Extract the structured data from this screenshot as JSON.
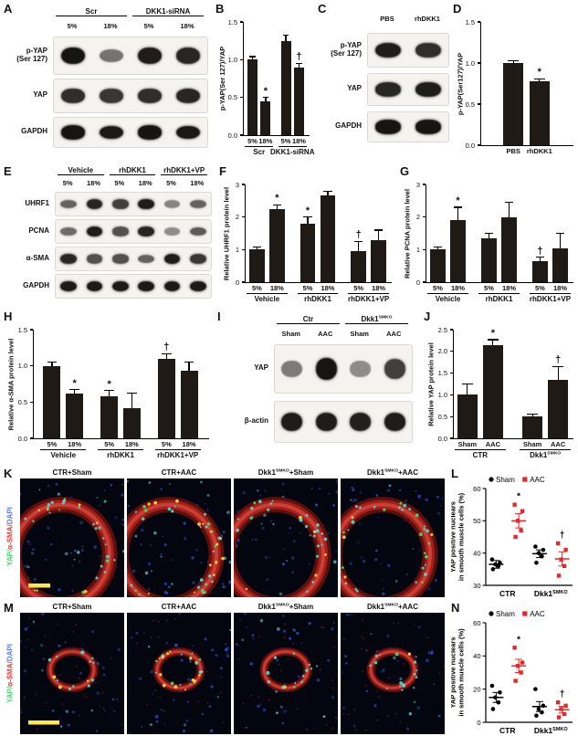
{
  "panel_labels": {
    "A": "A",
    "B": "B",
    "C": "C",
    "D": "D",
    "E": "E",
    "F": "F",
    "G": "G",
    "H": "H",
    "I": "I",
    "J": "J",
    "K": "K",
    "L": "L",
    "M": "M",
    "N": "N"
  },
  "blots": {
    "A": {
      "groups": [
        {
          "text": "Scr",
          "span": 2
        },
        {
          "text": "DKK1-siRNA",
          "span": 2
        }
      ],
      "lanes": [
        "5%",
        "18%",
        "5%",
        "18%"
      ],
      "rows": [
        {
          "label": "p-YAP\n(Ser 127)",
          "bands": [
            0.95,
            0.4,
            0.9,
            0.85
          ]
        },
        {
          "label": "YAP",
          "bands": [
            0.8,
            0.75,
            0.8,
            0.85
          ]
        },
        {
          "label": "GAPDH",
          "bands": [
            0.95,
            0.92,
            0.95,
            0.93
          ]
        }
      ]
    },
    "C": {
      "lanes": [
        "PBS",
        "rhDKK1"
      ],
      "rows": [
        {
          "label": "p-YAP\n(Ser 127)",
          "bands": [
            0.9,
            0.8
          ]
        },
        {
          "label": "YAP",
          "bands": [
            0.85,
            0.9
          ]
        },
        {
          "label": "GAPDH",
          "bands": [
            0.95,
            0.95
          ]
        }
      ]
    },
    "E": {
      "groups": [
        {
          "text": "Vehicle",
          "span": 2
        },
        {
          "text": "rhDKK1",
          "span": 2
        },
        {
          "text": "rhDKK1+VP",
          "span": 2
        }
      ],
      "lanes": [
        "5%",
        "18%",
        "5%",
        "18%",
        "5%",
        "18%"
      ],
      "rows": [
        {
          "label": "UHRF1",
          "bands": [
            0.5,
            0.85,
            0.7,
            0.9,
            0.3,
            0.5
          ]
        },
        {
          "label": "PCNA",
          "bands": [
            0.45,
            0.9,
            0.6,
            0.85,
            0.25,
            0.55
          ]
        },
        {
          "label": "α-SMA",
          "bands": [
            0.85,
            0.6,
            0.6,
            0.5,
            0.9,
            0.75
          ]
        },
        {
          "label": "GAPDH",
          "bands": [
            0.92,
            0.92,
            0.92,
            0.92,
            0.92,
            0.92
          ]
        }
      ]
    },
    "I": {
      "groups": [
        {
          "text": "Ctr",
          "span": 2
        },
        {
          "text": "Dkk1",
          "sup": "SMKO",
          "span": 2
        }
      ],
      "lanes": [
        "Sham",
        "AAC",
        "Sham",
        "AAC"
      ],
      "rows": [
        {
          "label": "YAP",
          "bands": [
            0.35,
            0.95,
            0.25,
            0.7
          ]
        },
        {
          "label": "β-actin",
          "bands": [
            0.9,
            0.9,
            0.88,
            0.9
          ]
        }
      ]
    }
  },
  "fluor": {
    "K": {
      "side_label": [
        {
          "t": "YAP/",
          "c": "#3ddc6f"
        },
        {
          "t": "α-SMA/",
          "c": "#e8403a"
        },
        {
          "t": "DAPI",
          "c": "#5f7cf0"
        }
      ],
      "titles": [
        [
          {
            "t": "CTR+Sham"
          }
        ],
        [
          {
            "t": "CTR+AAC"
          }
        ],
        [
          {
            "t": "Dkk1"
          },
          {
            "sup": "SMKO"
          },
          {
            "t": "+Sham"
          }
        ],
        [
          {
            "t": "Dkk1"
          },
          {
            "sup": "SMKO"
          },
          {
            "t": "+AAC"
          }
        ]
      ],
      "images": [
        {
          "type": "arc",
          "bg": 58,
          "ring": 48,
          "green": 0.28,
          "scalebar": true
        },
        {
          "type": "arc",
          "bg": 58,
          "ring": 54,
          "green": 0.5,
          "scalebar": false
        },
        {
          "type": "arc",
          "bg": 58,
          "ring": 48,
          "green": 0.28,
          "scalebar": false
        },
        {
          "type": "arc",
          "bg": 58,
          "ring": 52,
          "green": 0.45,
          "scalebar": false
        }
      ]
    },
    "M": {
      "side_label": [
        {
          "t": "YAP/",
          "c": "#3ddc6f"
        },
        {
          "t": "α-SMA/",
          "c": "#e8403a"
        },
        {
          "t": "DAPI",
          "c": "#5f7cf0"
        }
      ],
      "titles": [
        [
          {
            "t": "CTR+Sham"
          }
        ],
        [
          {
            "t": "CTR+AAC"
          }
        ],
        [
          {
            "t": "Dkk1"
          },
          {
            "sup": "SMKO"
          },
          {
            "t": "+Sham"
          }
        ],
        [
          {
            "t": "Dkk1"
          },
          {
            "sup": "SMKO"
          },
          {
            "t": "+AAC"
          }
        ]
      ],
      "images": [
        {
          "type": "ring",
          "bg": 46,
          "ring": 16,
          "green": 0.2,
          "scalebar": true
        },
        {
          "type": "ring",
          "bg": 46,
          "ring": 28,
          "green": 0.6,
          "scalebar": false
        },
        {
          "type": "ring",
          "bg": 46,
          "ring": 14,
          "green": 0.15,
          "scalebar": false
        },
        {
          "type": "ring",
          "bg": 46,
          "ring": 16,
          "green": 0.25,
          "scalebar": false
        }
      ]
    }
  },
  "chart_data": [
    {
      "id": "B",
      "type": "bar",
      "ylabel": "p-YAP(Ser 127)/YAP",
      "ymin": 0,
      "ymax": 1.5,
      "yticks": [
        0,
        0.5,
        1,
        1.5
      ],
      "ytick_labels": [
        "0.0",
        "0.5",
        "1.0",
        "1.5"
      ],
      "categories": [
        "5%",
        "18%",
        "5%",
        "18%"
      ],
      "groups": [
        {
          "text": "Scr",
          "span": 2
        },
        {
          "text": "DKK1-siRNA",
          "span": 2
        }
      ],
      "values": [
        1.0,
        0.45,
        1.25,
        0.9
      ],
      "errors": [
        0.04,
        0.05,
        0.07,
        0.05
      ],
      "sig": [
        "",
        "*",
        "",
        "†"
      ],
      "bar_color": "#1f1a15"
    },
    {
      "id": "D",
      "type": "bar",
      "ylabel": "p-YAP(Ser127)/YAP",
      "ymin": 0,
      "ymax": 1.5,
      "yticks": [
        0,
        0.5,
        1,
        1.5
      ],
      "ytick_labels": [
        "0.0",
        "0.5",
        "1.0",
        "1.5"
      ],
      "categories": [
        "PBS",
        "rhDKK1"
      ],
      "values": [
        1.0,
        0.78
      ],
      "errors": [
        0.03,
        0.03
      ],
      "sig": [
        "",
        "*"
      ],
      "bar_color": "#1f1a15"
    },
    {
      "id": "F",
      "type": "bar",
      "ylabel": "Relative UHRF1 protein level",
      "ymin": 0,
      "ymax": 3,
      "yticks": [
        0,
        1,
        2,
        3
      ],
      "ytick_labels": [
        "0",
        "1",
        "2",
        "3"
      ],
      "categories": [
        "5%",
        "18%",
        "5%",
        "18%",
        "5%",
        "18%"
      ],
      "groups": [
        {
          "text": "Vehicle",
          "span": 2
        },
        {
          "text": "rhDKK1",
          "span": 2
        },
        {
          "text": "rhDKK1+VP",
          "span": 2
        }
      ],
      "values": [
        1.0,
        2.25,
        1.8,
        2.65,
        0.95,
        1.3
      ],
      "errors": [
        0.08,
        0.12,
        0.2,
        0.15,
        0.3,
        0.3
      ],
      "sig": [
        "",
        "*",
        "*",
        "",
        "†",
        ""
      ],
      "bar_color": "#1f1a15"
    },
    {
      "id": "G",
      "type": "bar",
      "ylabel": "Relative PCNA protein level",
      "ymin": 0,
      "ymax": 3,
      "yticks": [
        0,
        1,
        2,
        3
      ],
      "ytick_labels": [
        "0",
        "1",
        "2",
        "3"
      ],
      "categories": [
        "5%",
        "18%",
        "5%",
        "18%",
        "5%",
        "18%"
      ],
      "groups": [
        {
          "text": "Vehicle",
          "span": 2
        },
        {
          "text": "rhDKK1",
          "span": 2
        },
        {
          "text": "rhDKK1+VP",
          "span": 2
        }
      ],
      "values": [
        1.0,
        1.9,
        1.35,
        2.0,
        0.65,
        1.05
      ],
      "errors": [
        0.08,
        0.4,
        0.15,
        0.45,
        0.12,
        0.45
      ],
      "sig": [
        "",
        "*",
        "",
        "",
        "†",
        ""
      ],
      "bar_color": "#1f1a15"
    },
    {
      "id": "H",
      "type": "bar",
      "ylabel": "Relative α-SMA protein level",
      "ymin": 0,
      "ymax": 1.5,
      "yticks": [
        0,
        0.5,
        1,
        1.5
      ],
      "ytick_labels": [
        "0.0",
        "0.5",
        "1.0",
        "1.5"
      ],
      "categories": [
        "5%",
        "18%",
        "5%",
        "18%",
        "5%",
        "18%"
      ],
      "groups": [
        {
          "text": "Vehicle",
          "span": 2
        },
        {
          "text": "rhDKK1",
          "span": 2
        },
        {
          "text": "rhDKK1+VP",
          "span": 2
        }
      ],
      "values": [
        1.0,
        0.62,
        0.58,
        0.42,
        1.1,
        0.93
      ],
      "errors": [
        0.05,
        0.05,
        0.08,
        0.2,
        0.07,
        0.12
      ],
      "sig": [
        "",
        "*",
        "*",
        "",
        "†",
        ""
      ],
      "bar_color": "#1f1a15"
    },
    {
      "id": "J",
      "type": "bar",
      "ylabel": "Relative YAP protein level",
      "ymin": 0,
      "ymax": 2.5,
      "yticks": [
        0,
        0.5,
        1,
        1.5,
        2,
        2.5
      ],
      "ytick_labels": [
        "0.0",
        "0.5",
        "1.0",
        "1.5",
        "2.0",
        "2.5"
      ],
      "categories": [
        "Sham",
        "AAC",
        "Sham",
        "AAC"
      ],
      "groups": [
        {
          "text": "CTR",
          "span": 2
        },
        {
          "text": "Dkk1",
          "sup": "SMKO",
          "span": 2
        }
      ],
      "values": [
        1.0,
        2.15,
        0.5,
        1.35
      ],
      "errors": [
        0.25,
        0.12,
        0.06,
        0.3
      ],
      "sig": [
        "",
        "*",
        "",
        "†"
      ],
      "bar_color": "#1f1a15"
    },
    {
      "id": "L",
      "type": "scatter",
      "ylabel_lines": [
        "YAP positive nuclears",
        "in smooth muscle cells (%)"
      ],
      "ymin": 30,
      "ymax": 60,
      "yticks": [
        30,
        40,
        50,
        60
      ],
      "ytick_labels": [
        "30",
        "40",
        "50",
        "60"
      ],
      "legend": [
        {
          "name": "Sham",
          "marker": "circle",
          "color": "#000000"
        },
        {
          "name": "AAC",
          "marker": "square",
          "color": "#e8262a"
        }
      ],
      "groups": [
        {
          "label": {
            "text": "CTR"
          },
          "cols": [
            {
              "series": "Sham",
              "points": [
                35,
                36,
                36.5,
                37,
                38
              ],
              "mean": 36.5,
              "err": 1.2,
              "sig": ""
            },
            {
              "series": "AAC",
              "points": [
                45,
                47,
                50,
                53,
                55
              ],
              "mean": 50,
              "err": 2.2,
              "sig": "*"
            }
          ]
        },
        {
          "label": {
            "text": "Dkk1",
            "sup": "SMKO"
          },
          "cols": [
            {
              "series": "Sham",
              "points": [
                37,
                39,
                40,
                41,
                42
              ],
              "mean": 39.8,
              "err": 1.2,
              "sig": ""
            },
            {
              "series": "AAC",
              "points": [
                33,
                36,
                38,
                41,
                43
              ],
              "mean": 38.2,
              "err": 2.2,
              "sig": "†"
            }
          ]
        }
      ]
    },
    {
      "id": "N",
      "type": "scatter",
      "ylabel_lines": [
        "YAP positive nuclears",
        "in smooth muscle cells (%)"
      ],
      "ymin": 0,
      "ymax": 60,
      "yticks": [
        0,
        20,
        40,
        60
      ],
      "ytick_labels": [
        "0",
        "20",
        "40",
        "60"
      ],
      "legend": [
        {
          "name": "Sham",
          "marker": "circle",
          "color": "#000000"
        },
        {
          "name": "AAC",
          "marker": "square",
          "color": "#e8262a"
        }
      ],
      "groups": [
        {
          "label": {
            "text": "CTR"
          },
          "cols": [
            {
              "series": "Sham",
              "points": [
                8,
                12,
                15,
                18,
                22
              ],
              "mean": 15,
              "err": 3,
              "sig": ""
            },
            {
              "series": "AAC",
              "points": [
                25,
                30,
                34,
                36,
                45
              ],
              "mean": 34,
              "err": 4,
              "sig": "*"
            }
          ]
        },
        {
          "label": {
            "text": "Dkk1",
            "sup": "SMKO"
          },
          "cols": [
            {
              "series": "Sham",
              "points": [
                4,
                6,
                8,
                10,
                20
              ],
              "mean": 9.5,
              "err": 3,
              "sig": ""
            },
            {
              "series": "AAC",
              "points": [
                3,
                5,
                8,
                10,
                12
              ],
              "mean": 7.6,
              "err": 2,
              "sig": "†"
            }
          ]
        }
      ]
    }
  ]
}
